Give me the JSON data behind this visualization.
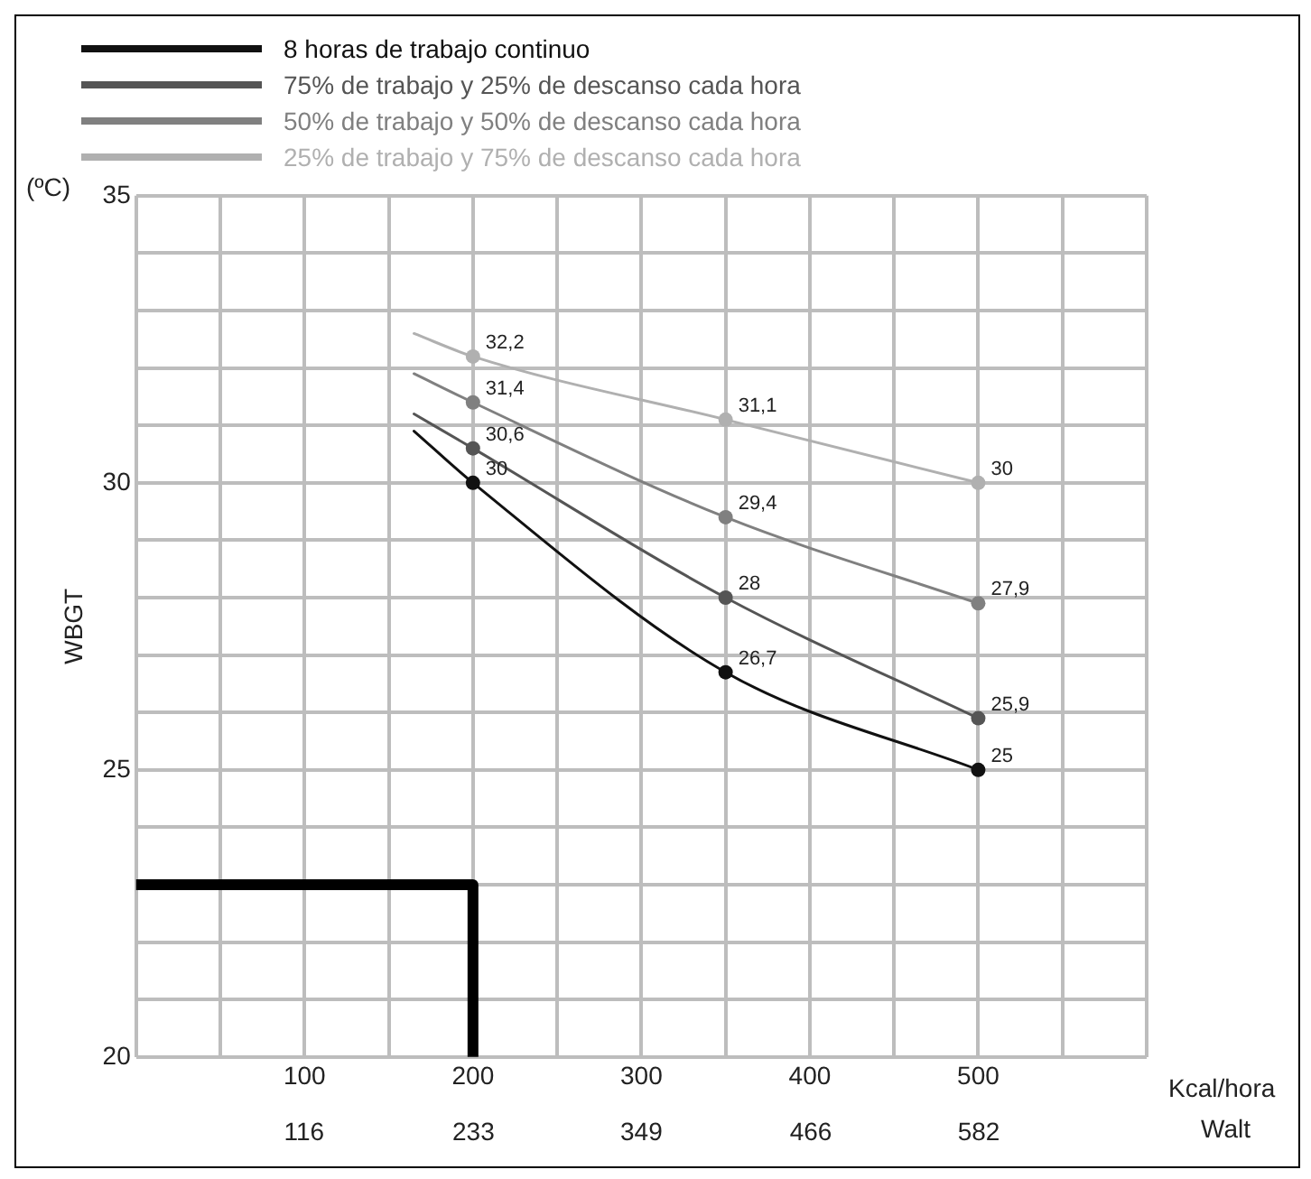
{
  "chart_data": {
    "type": "line",
    "xlabel": "Kcal/hora",
    "ylabel": "WBGT",
    "x2label": "Walt",
    "annotations": [
      "(ºC)"
    ],
    "xlim": [
      0,
      600
    ],
    "xticks": [
      {
        "value": 0,
        "label": null
      },
      {
        "value": 50,
        "label": null
      },
      100,
      {
        "value": 150,
        "label": null
      },
      200,
      {
        "value": 250,
        "label": null
      },
      300,
      {
        "value": 350,
        "label": null
      },
      400,
      {
        "value": 450,
        "label": null
      },
      500,
      {
        "value": 550,
        "label": null
      },
      {
        "value": 600,
        "label": null
      }
    ],
    "x2lim": [
      0,
      698
    ],
    "x2ticks": [
      116,
      233,
      349,
      466,
      582
    ],
    "ylim": [
      20,
      35
    ],
    "yticks": [
      20,
      {
        "value": 21,
        "label": null
      },
      {
        "value": 22,
        "label": null
      },
      {
        "value": 23,
        "label": null
      },
      {
        "value": 24,
        "label": null
      },
      25,
      {
        "value": 26,
        "label": null
      },
      {
        "value": 27,
        "label": null
      },
      {
        "value": 28,
        "label": null
      },
      {
        "value": 29,
        "label": null
      },
      30,
      {
        "value": 31,
        "label": null
      },
      {
        "value": 32,
        "label": null
      },
      {
        "value": 33,
        "label": null
      },
      {
        "value": 34,
        "label": null
      },
      35
    ],
    "grid": true,
    "legend": "top",
    "marker": "circle",
    "line_style": "solid",
    "series": [
      {
        "name": "8 horas de trabajo continuo",
        "color": "#111111",
        "x": [
          165,
          200,
          350,
          500
        ],
        "values": [
          30.9,
          30,
          26.7,
          25
        ],
        "value_labels": [
          null,
          "30",
          "26,7",
          "25"
        ]
      },
      {
        "name": "75% de trabajo y 25% de descanso cada hora",
        "color": "#555555",
        "x": [
          165,
          200,
          350,
          500
        ],
        "values": [
          31.2,
          30.6,
          28,
          25.9
        ],
        "value_labels": [
          null,
          "30,6",
          "28",
          "25,9"
        ]
      },
      {
        "name": "50% de trabajo y 50% de descanso cada hora",
        "color": "#808080",
        "x": [
          165,
          200,
          350,
          500
        ],
        "values": [
          31.9,
          31.4,
          29.4,
          27.9
        ],
        "value_labels": [
          null,
          "31,4",
          "29,4",
          "27,9"
        ]
      },
      {
        "name": "25% de trabajo y 75% de descanso cada hora",
        "color": "#b0b0b0",
        "x": [
          165,
          200,
          350,
          500
        ],
        "values": [
          32.6,
          32.2,
          31.1,
          30
        ],
        "value_labels": [
          null,
          "32,2",
          "31,1",
          "30"
        ]
      },
      {
        "type": "line",
        "color": "#000000",
        "x": [
          0,
          200,
          200
        ],
        "values": [
          23,
          23,
          20
        ],
        "marker": "none"
      }
    ]
  }
}
